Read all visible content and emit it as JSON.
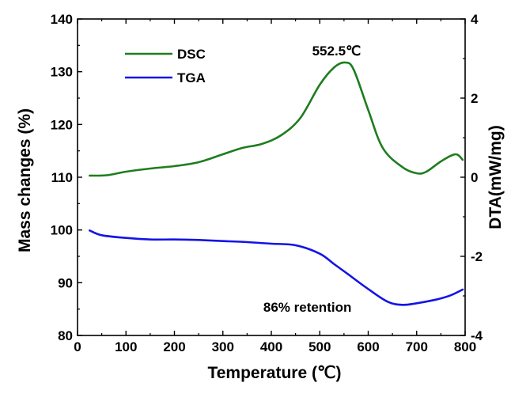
{
  "chart_data": {
    "type": "line",
    "xlabel": "Temperature (℃)",
    "ylabel_left": "Mass changes (%)",
    "ylabel_right": "DTA(mW/mg)",
    "xlim": [
      0,
      800
    ],
    "ylim_left": [
      80,
      140
    ],
    "ylim_right": [
      -4,
      4
    ],
    "x_ticks": [
      "0",
      "100",
      "200",
      "300",
      "400",
      "500",
      "600",
      "700",
      "800"
    ],
    "y_left_ticks": [
      "80",
      "90",
      "100",
      "110",
      "120",
      "130",
      "140"
    ],
    "y_right_ticks": [
      "-4",
      "-2",
      "0",
      "2",
      "4"
    ],
    "grid": false,
    "legend_position": "top-left",
    "colors": {
      "DSC": "#1e7d1e",
      "TGA": "#1414e6"
    },
    "series": [
      {
        "name": "DSC",
        "axis": "right",
        "x": [
          25,
          60,
          100,
          150,
          200,
          250,
          300,
          340,
          380,
          420,
          460,
          500,
          530,
          552.5,
          570,
          600,
          630,
          670,
          700,
          720,
          750,
          780,
          795
        ],
        "y": [
          0.04,
          0.05,
          0.14,
          0.22,
          0.28,
          0.38,
          0.58,
          0.74,
          0.84,
          1.06,
          1.5,
          2.34,
          2.78,
          2.9,
          2.72,
          1.7,
          0.74,
          0.26,
          0.1,
          0.14,
          0.4,
          0.58,
          0.44
        ]
      },
      {
        "name": "TGA",
        "axis": "left",
        "x": [
          25,
          50,
          100,
          150,
          200,
          250,
          300,
          350,
          400,
          450,
          500,
          530,
          560,
          600,
          640,
          670,
          700,
          740,
          770,
          795
        ],
        "y": [
          99.9,
          99.0,
          98.5,
          98.2,
          98.2,
          98.1,
          97.9,
          97.7,
          97.4,
          97.1,
          95.5,
          93.5,
          91.5,
          88.8,
          86.4,
          85.8,
          86.1,
          86.8,
          87.6,
          88.7
        ]
      }
    ],
    "annotations": [
      {
        "text": "552.5℃",
        "x": 552.5,
        "y_right": 3.2
      },
      {
        "text": "86% retention",
        "x": 530,
        "y_left": 85.4
      }
    ]
  }
}
